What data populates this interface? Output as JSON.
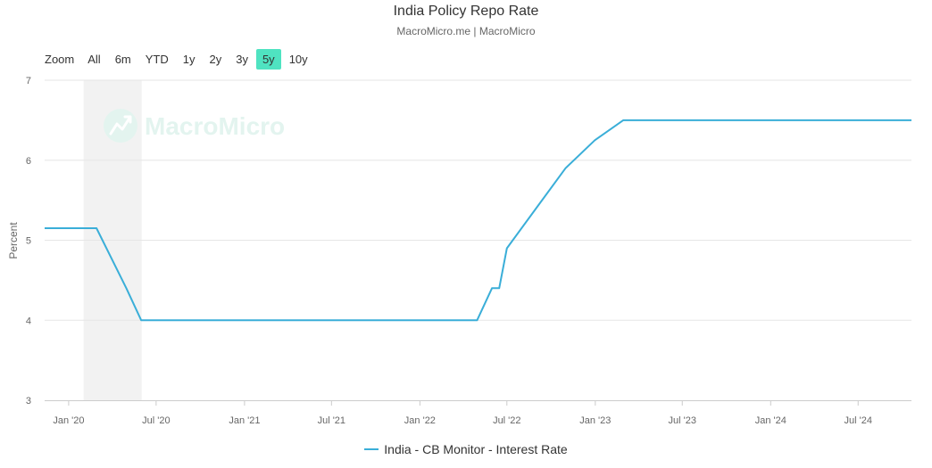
{
  "header": {
    "title": "India Policy Repo Rate",
    "subtitle": "MacroMicro.me | MacroMicro"
  },
  "zoom": {
    "label": "Zoom",
    "buttons": [
      "All",
      "6m",
      "YTD",
      "1y",
      "2y",
      "3y",
      "5y",
      "10y"
    ],
    "active": "5y"
  },
  "watermark": {
    "text": "MacroMicro",
    "icon": "macromicro-logo-icon"
  },
  "colors": {
    "series": "#3aaed8",
    "active_zoom": "#4fe3c1",
    "recession_band": "#f2f2f2",
    "watermark": "#e3f4ef"
  },
  "chart_data": {
    "type": "line",
    "title": "India Policy Repo Rate",
    "subtitle": "MacroMicro.me | MacroMicro",
    "ylabel": "Percent",
    "xlabel": "",
    "ylim": [
      3,
      7
    ],
    "yticks": [
      "3",
      "4",
      "5",
      "6",
      "7"
    ],
    "xlim": [
      "2019-11-12",
      "2024-10-20"
    ],
    "xticks": [
      {
        "date": "2020-01-01",
        "label": "Jan '20"
      },
      {
        "date": "2020-07-01",
        "label": "Jul '20"
      },
      {
        "date": "2021-01-01",
        "label": "Jan '21"
      },
      {
        "date": "2021-07-01",
        "label": "Jul '21"
      },
      {
        "date": "2022-01-01",
        "label": "Jan '22"
      },
      {
        "date": "2022-07-01",
        "label": "Jul '22"
      },
      {
        "date": "2023-01-01",
        "label": "Jan '23"
      },
      {
        "date": "2023-07-01",
        "label": "Jul '23"
      },
      {
        "date": "2024-01-01",
        "label": "Jan '24"
      },
      {
        "date": "2024-07-01",
        "label": "Jul '24"
      }
    ],
    "grid": true,
    "legend_position": "bottom-center",
    "shaded_regions": [
      {
        "start": "2020-02-01",
        "end": "2020-06-01"
      }
    ],
    "series": [
      {
        "name": "India - CB Monitor - Interest Rate",
        "points": [
          {
            "x": "2019-11-12",
            "y": 5.15
          },
          {
            "x": "2020-02-28",
            "y": 5.15
          },
          {
            "x": "2020-04-30",
            "y": 4.4
          },
          {
            "x": "2020-05-31",
            "y": 4.0
          },
          {
            "x": "2022-04-30",
            "y": 4.0
          },
          {
            "x": "2022-05-31",
            "y": 4.4
          },
          {
            "x": "2022-06-15",
            "y": 4.4
          },
          {
            "x": "2022-07-01",
            "y": 4.9
          },
          {
            "x": "2022-08-31",
            "y": 5.4
          },
          {
            "x": "2022-10-31",
            "y": 5.9
          },
          {
            "x": "2022-12-31",
            "y": 6.25
          },
          {
            "x": "2023-02-28",
            "y": 6.5
          },
          {
            "x": "2024-10-20",
            "y": 6.5
          }
        ]
      }
    ]
  }
}
